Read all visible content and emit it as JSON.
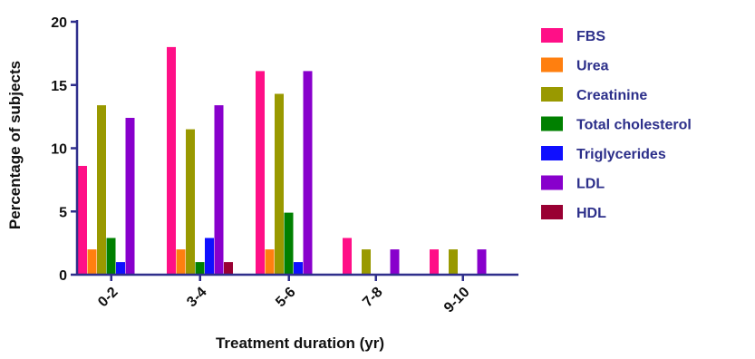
{
  "chart_data": {
    "type": "bar",
    "title": "",
    "xlabel": "Treatment duration (yr)",
    "ylabel": "Percentage of subjects",
    "ylim": [
      0,
      20
    ],
    "yticks": [
      "0",
      "5",
      "10",
      "15",
      "20"
    ],
    "categories": [
      "0-2",
      "3-4",
      "5-6",
      "7-8",
      "9-10"
    ],
    "grid": false,
    "legend_position": "right",
    "series": [
      {
        "name": "FBS",
        "color": "#ff0f87",
        "values": [
          8.6,
          18,
          16.1,
          2.9,
          2
        ]
      },
      {
        "name": "Urea",
        "color": "#ff7f0f",
        "values": [
          2,
          2,
          2,
          0,
          0
        ]
      },
      {
        "name": "Creatinine",
        "color": "#999900",
        "values": [
          13.4,
          11.5,
          14.3,
          2,
          2
        ]
      },
      {
        "name": "Total cholesterol",
        "color": "#008000",
        "values": [
          2.9,
          1,
          4.9,
          0,
          0
        ]
      },
      {
        "name": "Triglycerides",
        "color": "#0f0fff",
        "values": [
          1,
          2.9,
          1,
          0,
          0
        ]
      },
      {
        "name": "LDL",
        "color": "#8800cc",
        "values": [
          12.4,
          13.4,
          16.1,
          2,
          2
        ]
      },
      {
        "name": "HDL",
        "color": "#990033",
        "values": [
          0,
          1,
          0,
          0,
          0
        ]
      }
    ]
  }
}
